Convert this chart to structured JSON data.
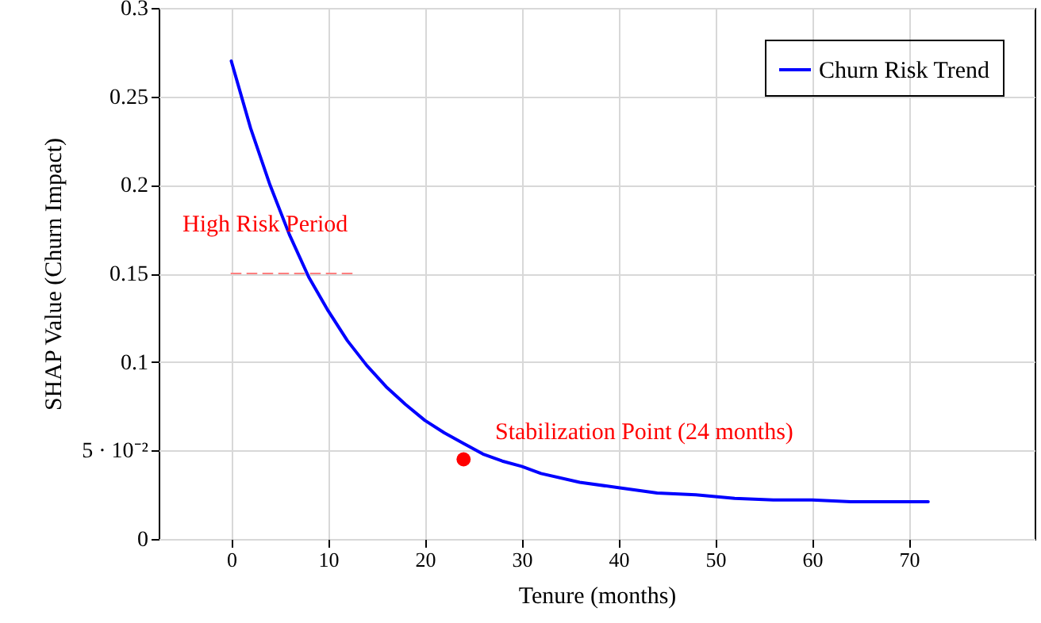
{
  "chart_data": {
    "type": "line",
    "xlabel": "Tenure (months)",
    "ylabel": "SHAP Value (Churn Impact)",
    "xlim": [
      -7.5,
      83
    ],
    "ylim": [
      0,
      0.3
    ],
    "xticks": [
      0,
      10,
      20,
      30,
      40,
      50,
      60,
      70
    ],
    "yticks": [
      0,
      {
        "value": 0.05,
        "label": "5 · 10⁻²"
      },
      0.1,
      0.15,
      0.2,
      0.25,
      0.3
    ],
    "grid": true,
    "legend": "top right",
    "series": [
      {
        "name": "Churn Risk Trend",
        "color": "#0000ff",
        "x": [
          0,
          2,
          4,
          6,
          8,
          10,
          12,
          14,
          16,
          18,
          20,
          22,
          24,
          26,
          28,
          30,
          32,
          36,
          40,
          44,
          48,
          52,
          56,
          60,
          64,
          68,
          72
        ],
        "values": [
          0.27,
          0.232,
          0.2,
          0.172,
          0.148,
          0.129,
          0.112,
          0.098,
          0.086,
          0.076,
          0.067,
          0.06,
          0.054,
          0.048,
          0.044,
          0.041,
          0.037,
          0.032,
          0.029,
          0.026,
          0.025,
          0.023,
          0.022,
          0.022,
          0.021,
          0.021,
          0.021
        ]
      },
      {
        "color": "#ff0000",
        "type": "scatter",
        "marker": "circle",
        "x": [
          24
        ],
        "values": [
          0.045
        ]
      },
      {
        "color": "#ff8080",
        "line_style": "dashed",
        "x": [
          0,
          12.5
        ],
        "values": [
          0.15,
          0.15
        ]
      }
    ],
    "annotations": [
      "High Risk Period",
      "Stabilization Point (24 months)"
    ]
  }
}
